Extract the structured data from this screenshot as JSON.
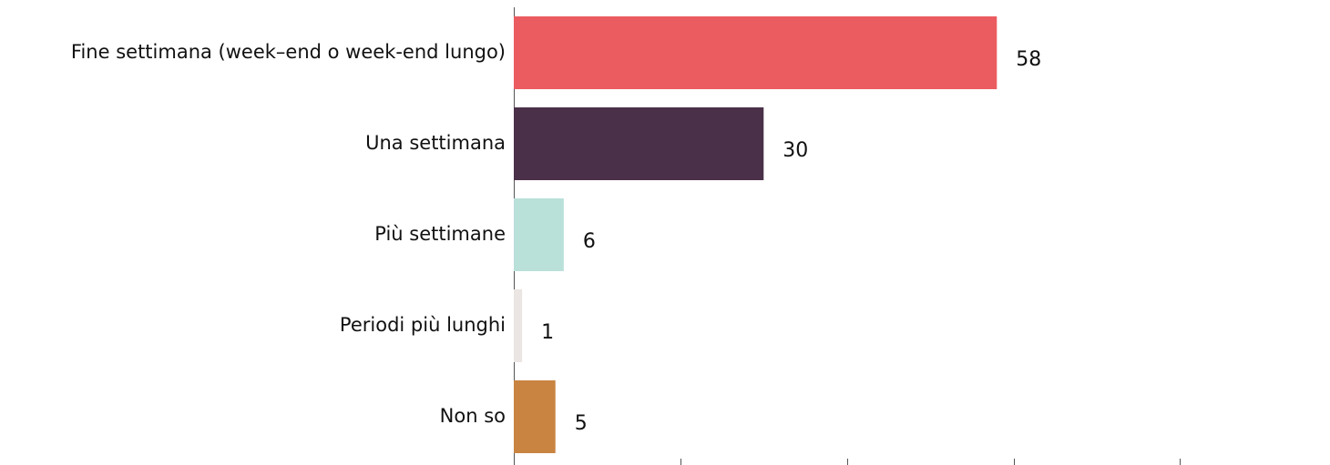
{
  "chart_data": {
    "type": "barh",
    "categories": [
      "Fine settimana (week–end o week-end lungo)",
      "Una settimana",
      "Più settimane",
      "Periodi più lunghi",
      "Non so"
    ],
    "values": [
      58,
      30,
      6,
      1,
      5
    ],
    "colors": [
      "#eb5c60",
      "#4b3049",
      "#bae0da",
      "#ebe5e3",
      "#c98442"
    ],
    "xlim": [
      0,
      98
    ],
    "xticks": [
      0,
      20,
      40,
      60,
      80
    ]
  }
}
